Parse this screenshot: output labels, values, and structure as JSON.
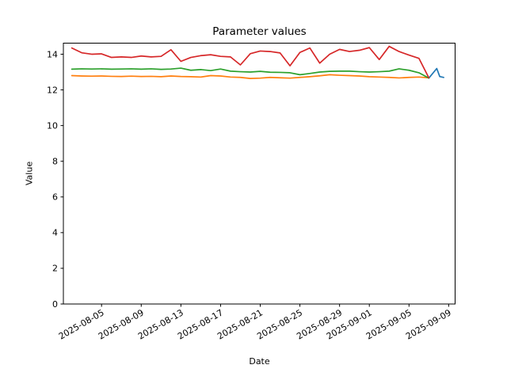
{
  "figure": {
    "background": "#ffffff",
    "axis_color": "#000000"
  },
  "chart_data": {
    "type": "line",
    "title": "Parameter values",
    "xlabel": "Date",
    "ylabel": "Value",
    "grid": false,
    "legend": "none",
    "x_axis": {
      "unit": "days since 2025-08-02",
      "range": [
        -0.85,
        38.65
      ],
      "tick_offsets": [
        3,
        7,
        11,
        15,
        19,
        23,
        27,
        30,
        34,
        38
      ],
      "tick_labels": [
        "2025-08-05",
        "2025-08-09",
        "2025-08-13",
        "2025-08-17",
        "2025-08-21",
        "2025-08-25",
        "2025-08-29",
        "2025-09-01",
        "2025-09-05",
        "2025-09-09"
      ],
      "tick_label_rotation_deg": 30
    },
    "y_axis": {
      "range": [
        0,
        14.62
      ],
      "tick_values": [
        0,
        2,
        4,
        6,
        8,
        10,
        12,
        14
      ],
      "tick_labels": [
        "0",
        "2",
        "4",
        "6",
        "8",
        "10",
        "12",
        "14"
      ]
    },
    "series": [
      {
        "name": "blue",
        "color": "#1f77b4",
        "x_offsets": [
          36.0,
          36.8,
          37.1,
          37.5
        ],
        "values": [
          12.66,
          13.2,
          12.75,
          12.7
        ]
      },
      {
        "name": "orange",
        "color": "#ff7f0e",
        "x_offsets": [
          0,
          1,
          2,
          3,
          4,
          5,
          6,
          7,
          8,
          9,
          10,
          11,
          12,
          13,
          14,
          15,
          16,
          17,
          18,
          19,
          20,
          21,
          22,
          23,
          24,
          25,
          26,
          27,
          28,
          29,
          30,
          31,
          32,
          33,
          34,
          35,
          36
        ],
        "values": [
          12.8,
          12.78,
          12.77,
          12.78,
          12.76,
          12.75,
          12.77,
          12.75,
          12.76,
          12.74,
          12.78,
          12.75,
          12.74,
          12.72,
          12.8,
          12.78,
          12.72,
          12.7,
          12.64,
          12.66,
          12.7,
          12.68,
          12.66,
          12.7,
          12.74,
          12.79,
          12.85,
          12.82,
          12.8,
          12.78,
          12.74,
          12.72,
          12.7,
          12.67,
          12.7,
          12.72,
          12.68
        ]
      },
      {
        "name": "green",
        "color": "#2ca02c",
        "x_offsets": [
          0,
          1,
          2,
          3,
          4,
          5,
          6,
          7,
          8,
          9,
          10,
          11,
          12,
          13,
          14,
          15,
          16,
          17,
          18,
          19,
          20,
          21,
          22,
          23,
          24,
          25,
          26,
          27,
          28,
          29,
          30,
          31,
          32,
          33,
          34,
          35,
          36
        ],
        "values": [
          13.16,
          13.18,
          13.17,
          13.18,
          13.16,
          13.17,
          13.18,
          13.16,
          13.18,
          13.15,
          13.17,
          13.22,
          13.1,
          13.14,
          13.08,
          13.17,
          13.05,
          13.02,
          13.0,
          13.04,
          12.99,
          12.98,
          12.96,
          12.85,
          12.92,
          13.0,
          13.04,
          13.05,
          13.05,
          13.02,
          13.0,
          13.02,
          13.05,
          13.18,
          13.1,
          12.96,
          12.66
        ]
      },
      {
        "name": "red",
        "color": "#d62728",
        "x_offsets": [
          0,
          1,
          2,
          3,
          4,
          5,
          6,
          7,
          8,
          9,
          10,
          11,
          12,
          13,
          14,
          15,
          16,
          17,
          18,
          19,
          20,
          21,
          22,
          23,
          24,
          25,
          26,
          27,
          28,
          29,
          30,
          31,
          32,
          33,
          34,
          35,
          36
        ],
        "values": [
          14.35,
          14.08,
          14.0,
          14.02,
          13.82,
          13.85,
          13.82,
          13.9,
          13.85,
          13.88,
          14.25,
          13.6,
          13.82,
          13.92,
          13.97,
          13.88,
          13.85,
          13.4,
          14.03,
          14.18,
          14.15,
          14.07,
          13.35,
          14.1,
          14.35,
          13.5,
          14.0,
          14.27,
          14.15,
          14.22,
          14.37,
          13.7,
          14.44,
          14.15,
          13.95,
          13.77,
          12.68
        ]
      }
    ]
  }
}
